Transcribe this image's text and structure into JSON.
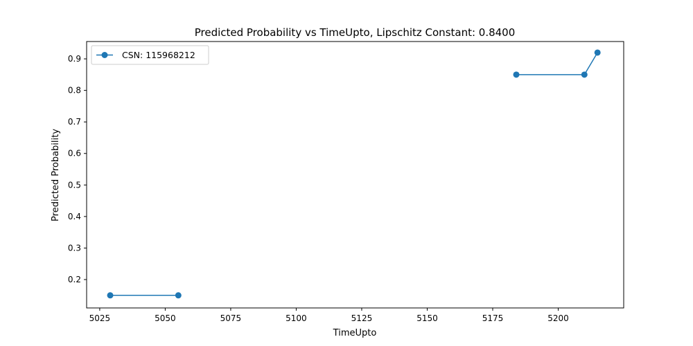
{
  "chart_data": {
    "type": "line",
    "title": "Predicted Probability vs TimeUpto, Lipschitz Constant: 0.8400",
    "xlabel": "TimeUpto",
    "ylabel": "Predicted Probability",
    "xlim": [
      5020,
      5225
    ],
    "ylim": [
      0.11,
      0.955
    ],
    "xticks": [
      5025,
      5050,
      5075,
      5100,
      5125,
      5150,
      5175,
      5200
    ],
    "yticks": [
      0.2,
      0.3,
      0.4,
      0.5,
      0.6,
      0.7,
      0.8,
      0.9
    ],
    "grid": false,
    "legend_position": "top-left",
    "series": [
      {
        "name": "CSN: 115968212",
        "color": "#1f77b4",
        "marker": "circle",
        "segments": [
          {
            "x": [
              5029,
              5055
            ],
            "y": [
              0.15,
              0.15
            ]
          },
          {
            "x": [
              5184,
              5210,
              5215
            ],
            "y": [
              0.85,
              0.85,
              0.92
            ]
          }
        ]
      }
    ]
  }
}
